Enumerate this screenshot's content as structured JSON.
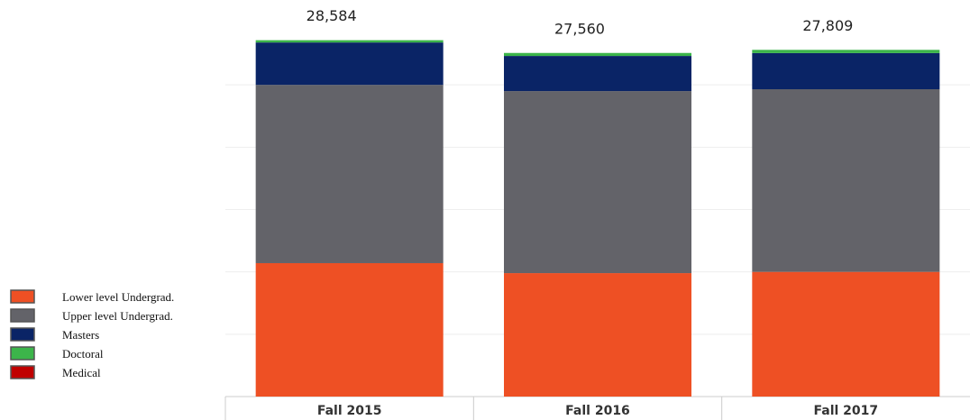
{
  "chart_data": {
    "type": "stacked-bar",
    "categories": [
      "Fall 2015",
      "Fall 2016",
      "Fall 2017"
    ],
    "series": [
      {
        "name": "Lower level Undergrad.",
        "color": "#ee5024",
        "values": [
          10700,
          9900,
          10000
        ]
      },
      {
        "name": "Upper level Undergrad.",
        "color": "#636369",
        "values": [
          14300,
          14600,
          14650
        ]
      },
      {
        "name": "Masters",
        "color": "#0a2466",
        "values": [
          3400,
          2820,
          2900
        ]
      },
      {
        "name": "Doctoral",
        "color": "#3cb54a",
        "values": [
          184,
          240,
          259
        ]
      },
      {
        "name": "Medical",
        "color": "#c00000",
        "values": [
          0,
          0,
          0
        ]
      }
    ],
    "totals": {
      "values": [
        28584,
        27560,
        27809
      ],
      "value_labels": [
        "28,584",
        "27,560",
        "27,809"
      ]
    },
    "ylim": [
      0,
      30000
    ],
    "grid_values": [
      5000,
      10000,
      15000,
      20000,
      25000
    ],
    "grid": true,
    "legend": "bottom-left"
  }
}
